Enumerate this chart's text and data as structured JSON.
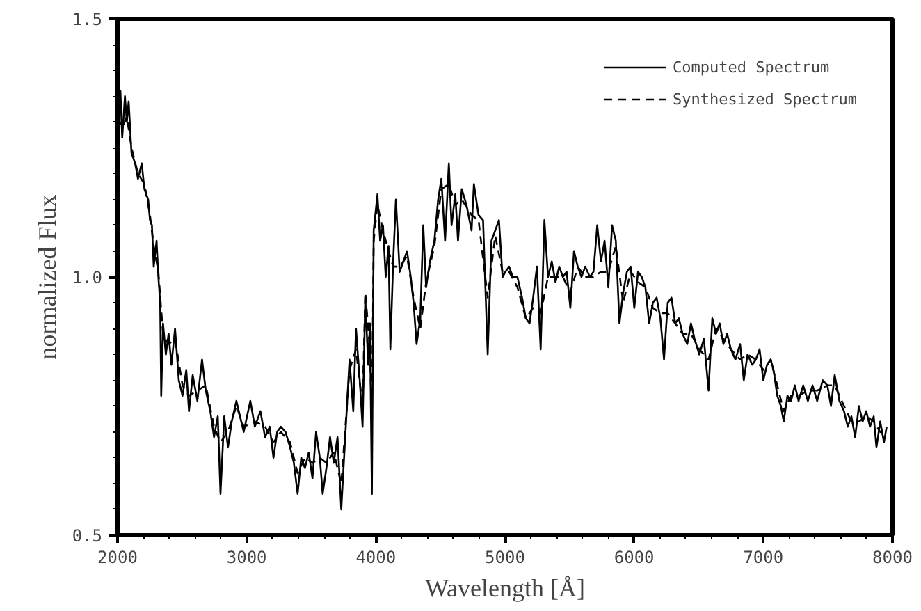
{
  "chart_data": {
    "type": "line",
    "xlabel": "Wavelength [Å]",
    "ylabel": "normalized Flux",
    "xlim": [
      2000,
      8000
    ],
    "ylim": [
      0.5,
      1.5
    ],
    "xticks": [
      2000,
      3000,
      4000,
      5000,
      6000,
      7000,
      8000
    ],
    "yticks": [
      {
        "value": 0.5,
        "label": "0.5"
      },
      {
        "value": 1.0,
        "label": "1.0"
      },
      {
        "value": 1.5,
        "label": "1.5"
      }
    ],
    "legend": "top right",
    "grid": false,
    "series": [
      {
        "name": "Computed Spectrum",
        "color": "#000000",
        "line_style": "solid",
        "x": [
          2000,
          2022,
          2036,
          2057,
          2072,
          2086,
          2108,
          2136,
          2158,
          2187,
          2208,
          2237,
          2251,
          2266,
          2280,
          2302,
          2316,
          2330,
          2338,
          2352,
          2374,
          2395,
          2417,
          2445,
          2474,
          2503,
          2532,
          2553,
          2582,
          2618,
          2654,
          2683,
          2718,
          2747,
          2776,
          2797,
          2826,
          2855,
          2884,
          2920,
          2948,
          2977,
          3028,
          3063,
          3106,
          3142,
          3178,
          3207,
          3236,
          3264,
          3300,
          3336,
          3365,
          3394,
          3422,
          3451,
          3480,
          3509,
          3537,
          3566,
          3588,
          3617,
          3645,
          3674,
          3703,
          3732,
          3767,
          3796,
          3825,
          3846,
          3875,
          3897,
          3918,
          3940,
          3954,
          3969,
          3983,
          4012,
          4033,
          4055,
          4076,
          4098,
          4112,
          4134,
          4155,
          4184,
          4213,
          4241,
          4270,
          4292,
          4315,
          4344,
          4367,
          4389,
          4418,
          4453,
          4482,
          4507,
          4536,
          4565,
          4586,
          4615,
          4636,
          4665,
          4701,
          4741,
          4759,
          4795,
          4830,
          4866,
          4895,
          4924,
          4953,
          4981,
          5003,
          5032,
          5060,
          5096,
          5132,
          5161,
          5190,
          5218,
          5247,
          5276,
          5305,
          5333,
          5362,
          5391,
          5420,
          5448,
          5477,
          5506,
          5534,
          5563,
          5592,
          5621,
          5657,
          5685,
          5714,
          5743,
          5771,
          5800,
          5829,
          5858,
          5886,
          5915,
          5944,
          5973,
          6001,
          6030,
          6059,
          6087,
          6116,
          6145,
          6174,
          6203,
          6231,
          6260,
          6289,
          6318,
          6346,
          6375,
          6411,
          6440,
          6468,
          6504,
          6540,
          6576,
          6605,
          6634,
          6662,
          6691,
          6720,
          6749,
          6784,
          6820,
          6849,
          6878,
          6914,
          6942,
          6971,
          7000,
          7029,
          7057,
          7079,
          7108,
          7136,
          7158,
          7187,
          7215,
          7244,
          7273,
          7309,
          7345,
          7381,
          7417,
          7460,
          7496,
          7524,
          7553,
          7589,
          7625,
          7654,
          7682,
          7711,
          7740,
          7769,
          7797,
          7826,
          7855,
          7876,
          7905,
          7934,
          7955
        ],
        "values": [
          1.33,
          1.36,
          1.27,
          1.35,
          1.3,
          1.34,
          1.24,
          1.22,
          1.19,
          1.22,
          1.17,
          1.15,
          1.11,
          1.1,
          1.02,
          1.07,
          1.0,
          0.95,
          0.77,
          0.91,
          0.85,
          0.89,
          0.83,
          0.9,
          0.8,
          0.77,
          0.82,
          0.74,
          0.81,
          0.76,
          0.84,
          0.78,
          0.74,
          0.69,
          0.73,
          0.58,
          0.73,
          0.67,
          0.72,
          0.76,
          0.73,
          0.7,
          0.76,
          0.71,
          0.74,
          0.69,
          0.71,
          0.65,
          0.7,
          0.71,
          0.7,
          0.67,
          0.64,
          0.58,
          0.65,
          0.63,
          0.66,
          0.61,
          0.7,
          0.65,
          0.58,
          0.63,
          0.69,
          0.64,
          0.69,
          0.55,
          0.71,
          0.84,
          0.74,
          0.9,
          0.8,
          0.71,
          0.96,
          0.83,
          0.91,
          0.58,
          1.09,
          1.16,
          1.07,
          1.1,
          1.0,
          1.06,
          0.86,
          1.03,
          1.15,
          1.01,
          1.03,
          1.05,
          1.0,
          0.95,
          0.87,
          0.92,
          1.1,
          0.98,
          1.03,
          1.07,
          1.15,
          1.19,
          1.07,
          1.22,
          1.1,
          1.16,
          1.07,
          1.17,
          1.14,
          1.09,
          1.18,
          1.12,
          1.11,
          0.85,
          1.07,
          1.09,
          1.11,
          1.0,
          1.01,
          1.02,
          1.0,
          1.0,
          0.96,
          0.92,
          0.91,
          0.96,
          1.02,
          0.86,
          1.11,
          1.0,
          1.03,
          0.99,
          1.02,
          1.0,
          1.01,
          0.94,
          1.05,
          1.02,
          1.0,
          1.02,
          1.0,
          1.01,
          1.1,
          1.03,
          1.07,
          0.98,
          1.1,
          1.07,
          0.91,
          0.97,
          1.01,
          1.02,
          0.94,
          1.01,
          1.0,
          0.98,
          0.91,
          0.95,
          0.96,
          0.92,
          0.84,
          0.95,
          0.96,
          0.91,
          0.92,
          0.89,
          0.87,
          0.91,
          0.88,
          0.85,
          0.88,
          0.78,
          0.92,
          0.89,
          0.91,
          0.87,
          0.89,
          0.86,
          0.84,
          0.87,
          0.8,
          0.85,
          0.83,
          0.84,
          0.86,
          0.8,
          0.83,
          0.84,
          0.82,
          0.77,
          0.75,
          0.72,
          0.77,
          0.76,
          0.79,
          0.76,
          0.79,
          0.76,
          0.79,
          0.76,
          0.8,
          0.79,
          0.75,
          0.81,
          0.76,
          0.74,
          0.71,
          0.73,
          0.69,
          0.75,
          0.72,
          0.74,
          0.71,
          0.73,
          0.67,
          0.72,
          0.68,
          0.71
        ]
      },
      {
        "name": "Synthesized Spectrum",
        "color": "#000000",
        "line_style": "dashed",
        "x": [
          2000,
          2036,
          2072,
          2108,
          2158,
          2208,
          2251,
          2280,
          2316,
          2352,
          2395,
          2445,
          2503,
          2553,
          2618,
          2683,
          2747,
          2797,
          2855,
          2920,
          2977,
          3063,
          3142,
          3207,
          3264,
          3336,
          3394,
          3451,
          3509,
          3566,
          3617,
          3674,
          3732,
          3796,
          3846,
          3897,
          3918,
          3954,
          3969,
          3983,
          4012,
          4055,
          4098,
          4134,
          4184,
          4241,
          4292,
          4344,
          4389,
          4453,
          4507,
          4565,
          4615,
          4665,
          4741,
          4795,
          4866,
          4924,
          4981,
          5032,
          5096,
          5161,
          5218,
          5276,
          5333,
          5391,
          5448,
          5506,
          5563,
          5621,
          5685,
          5743,
          5800,
          5858,
          5915,
          5973,
          6030,
          6087,
          6145,
          6203,
          6260,
          6318,
          6375,
          6440,
          6504,
          6576,
          6634,
          6691,
          6749,
          6820,
          6878,
          6942,
          7000,
          7057,
          7108,
          7158,
          7215,
          7273,
          7345,
          7417,
          7496,
          7553,
          7625,
          7682,
          7740,
          7797,
          7855,
          7905,
          7955
        ],
        "values": [
          1.31,
          1.29,
          1.31,
          1.25,
          1.2,
          1.18,
          1.12,
          1.06,
          1.01,
          0.89,
          0.87,
          0.88,
          0.79,
          0.77,
          0.78,
          0.79,
          0.71,
          0.68,
          0.7,
          0.75,
          0.71,
          0.72,
          0.71,
          0.68,
          0.7,
          0.68,
          0.62,
          0.65,
          0.64,
          0.65,
          0.64,
          0.66,
          0.6,
          0.82,
          0.86,
          0.75,
          0.97,
          0.86,
          0.72,
          1.07,
          1.14,
          1.09,
          1.05,
          1.02,
          1.02,
          1.04,
          0.96,
          0.9,
          0.99,
          1.06,
          1.17,
          1.18,
          1.14,
          1.15,
          1.12,
          1.11,
          0.96,
          1.08,
          1.01,
          1.01,
          0.98,
          0.92,
          0.94,
          0.93,
          1.0,
          1.0,
          1.0,
          0.97,
          1.02,
          1.0,
          1.0,
          1.01,
          1.01,
          1.06,
          0.95,
          1.01,
          0.99,
          0.98,
          0.94,
          0.93,
          0.93,
          0.91,
          0.89,
          0.89,
          0.86,
          0.84,
          0.9,
          0.88,
          0.86,
          0.84,
          0.85,
          0.84,
          0.82,
          0.84,
          0.79,
          0.74,
          0.77,
          0.77,
          0.78,
          0.78,
          0.79,
          0.79,
          0.75,
          0.72,
          0.72,
          0.73,
          0.72,
          0.7,
          0.7
        ]
      }
    ]
  }
}
